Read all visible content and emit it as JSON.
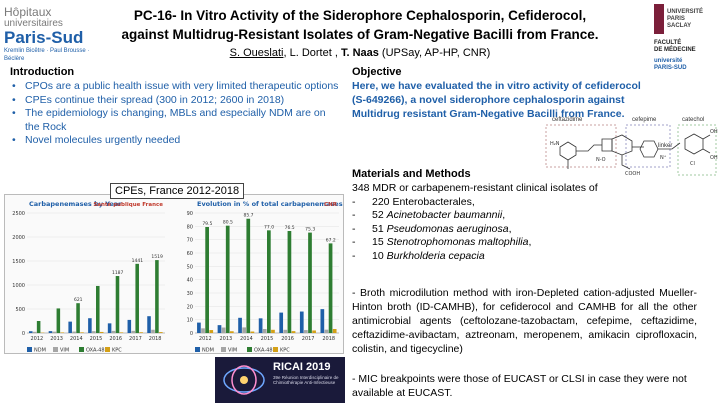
{
  "header": {
    "logo_left": [
      "Hôpitaux",
      "universitaires",
      "Paris-Sud",
      "Kremlin Bicêtre · Paul Brousse · Béclère"
    ],
    "logo_right": {
      "ups": [
        "UNIVERSITÉ",
        "PARIS",
        "SACLAY"
      ],
      "faculty": [
        "FACULTÉ",
        "DE MÉDECINE"
      ],
      "small": [
        "université",
        "PARIS-SUD"
      ]
    },
    "title_line1": "PC-16- In Vitro Activity of the Siderophore Cephalosporin, Cefiderocol,",
    "title_line2": "against Multidrug-Resistant Isolates of Gram-Negative Bacilli from France.",
    "authors": {
      "a1": "S. Oueslati",
      "sep1": ", L. Dortet , ",
      "a3": "T. Naas",
      "aff": " (UPSay, AP-HP, CNR)"
    }
  },
  "introduction": {
    "heading": "Introduction",
    "items": [
      "CPOs are a public health issue with very limited therapeutic options",
      "CPEs continue their spread (300 in 2012; 2600 in 2018)",
      "The epidemiology is changing, MBLs and especially NDM are on the Rock",
      "Novel molecules urgently needed"
    ]
  },
  "objective": {
    "heading": "Objective",
    "text": "Here, we have evaluated the in vitro activity of cefiderocol (S-649266), a novel siderophore cephalosporin against Multidrug resistant Gram-Negative Bacilli from France."
  },
  "chemistry": {
    "labels": [
      "ceftazidime",
      "cefepime",
      "catechol",
      "linker"
    ]
  },
  "figure": {
    "title": "CPEs, France 2012-2018",
    "left_chart": {
      "title": "Carbapenemases by Year",
      "badge": "Santé publique France",
      "y_ticks": [
        "2500",
        "2000",
        "1500",
        "1000",
        "500",
        "0"
      ],
      "categories": [
        "2012",
        "2013",
        "2014",
        "2015",
        "2016",
        "2017",
        "2018"
      ],
      "labels_top": [
        "",
        "",
        "621",
        "",
        "1187",
        "1441",
        "1519"
      ],
      "legend": [
        "NDM",
        "VIM",
        "OXA-48",
        "KPC"
      ],
      "colors": [
        "#1f5fa8",
        "#a6a6a6",
        "#2e7d32",
        "#d4a017"
      ]
    },
    "right_chart": {
      "title": "Evolution in % of total carbapenemases",
      "badge": "CNR",
      "y_ticks": [
        "90",
        "80",
        "70",
        "60",
        "50",
        "40",
        "30",
        "20",
        "10",
        "0"
      ],
      "categories": [
        "2012",
        "2013",
        "2014",
        "2015",
        "2016",
        "2017",
        "2018"
      ],
      "top_labels": [
        "79.5",
        "80.5",
        "85.7",
        "77.0",
        "76.5",
        "75.3",
        "67.2"
      ],
      "legend": [
        "NDM",
        "VIM",
        "OXA-48",
        "KPC"
      ]
    }
  },
  "chart_data": [
    {
      "type": "bar",
      "title": "Carbapenemases by Year",
      "categories": [
        "2012",
        "2013",
        "2014",
        "2015",
        "2016",
        "2017",
        "2018"
      ],
      "series": [
        {
          "name": "NDM",
          "values": [
            37,
            39,
            237,
            308,
            201,
            273,
            350
          ]
        },
        {
          "name": "VIM",
          "values": [
            25,
            28,
            30,
            38,
            44,
            45,
            68
          ]
        },
        {
          "name": "OXA-48",
          "values": [
            250,
            512,
            621,
            980,
            1187,
            1441,
            1519
          ]
        },
        {
          "name": "KPC",
          "values": [
            8,
            12,
            14,
            22,
            13,
            16,
            19
          ]
        }
      ],
      "ylim": [
        0,
        2500
      ]
    },
    {
      "type": "bar",
      "title": "Evolution in % of total carbapenemases",
      "categories": [
        "2012",
        "2013",
        "2014",
        "2015",
        "2016",
        "2017",
        "2018"
      ],
      "series": [
        {
          "name": "NDM",
          "values": [
            7.8,
            5.9,
            11.4,
            11.0,
            15.3,
            16.1,
            17.9
          ]
        },
        {
          "name": "VIM",
          "values": [
            3.5,
            4.1,
            4.2,
            3.0,
            2.4,
            2.2,
            2.5
          ]
        },
        {
          "name": "OXA-48",
          "values": [
            79.5,
            80.5,
            85.7,
            77.0,
            76.5,
            75.3,
            67.2
          ]
        },
        {
          "name": "KPC",
          "values": [
            2.2,
            1.3,
            1.1,
            2.4,
            1.4,
            1.9,
            3.0
          ]
        }
      ],
      "ylim": [
        0,
        90
      ]
    }
  ],
  "materials": {
    "heading": "Materials and Methods",
    "intro": "348 MDR or carbapenem-resistant clinical isolates of",
    "items": [
      {
        "n": "220",
        "t": "Enterobacterales,",
        "italic": false
      },
      {
        "n": "52",
        "t": "Acinetobacter baumannii",
        "suffix": ",",
        "italic": true
      },
      {
        "n": "51",
        "t": "Pseudomonas aeruginosa",
        "suffix": ",",
        "italic": true
      },
      {
        "n": "15",
        "t": "Stenotrophomonas maltophilia",
        "suffix": ",",
        "italic": true
      },
      {
        "n": "10",
        "t": "Burkholderia cepacia",
        "suffix": "",
        "italic": true
      }
    ],
    "method": "- Broth microdilution method with iron-Depleted cation-adjusted Mueller-Hinton broth (ID-CAMHB), for cefiderocol and CAMHB for all the other antimicrobial agents (ceftolozane-tazobactam, cefepime, ceftazidime, ceftazidime-avibactam, aztreonam, meropenem, amikacin ciprofloxacin, colistin, and tigecycline)",
    "mic": "- MIC breakpoints were those of EUCAST or CLSI in case they were not available at EUCAST."
  },
  "conference": {
    "name": "RICAI 2019",
    "tagline": "39e Réunion Interdisciplinaire de Chimiothérapie Anti-Infectieuse"
  }
}
